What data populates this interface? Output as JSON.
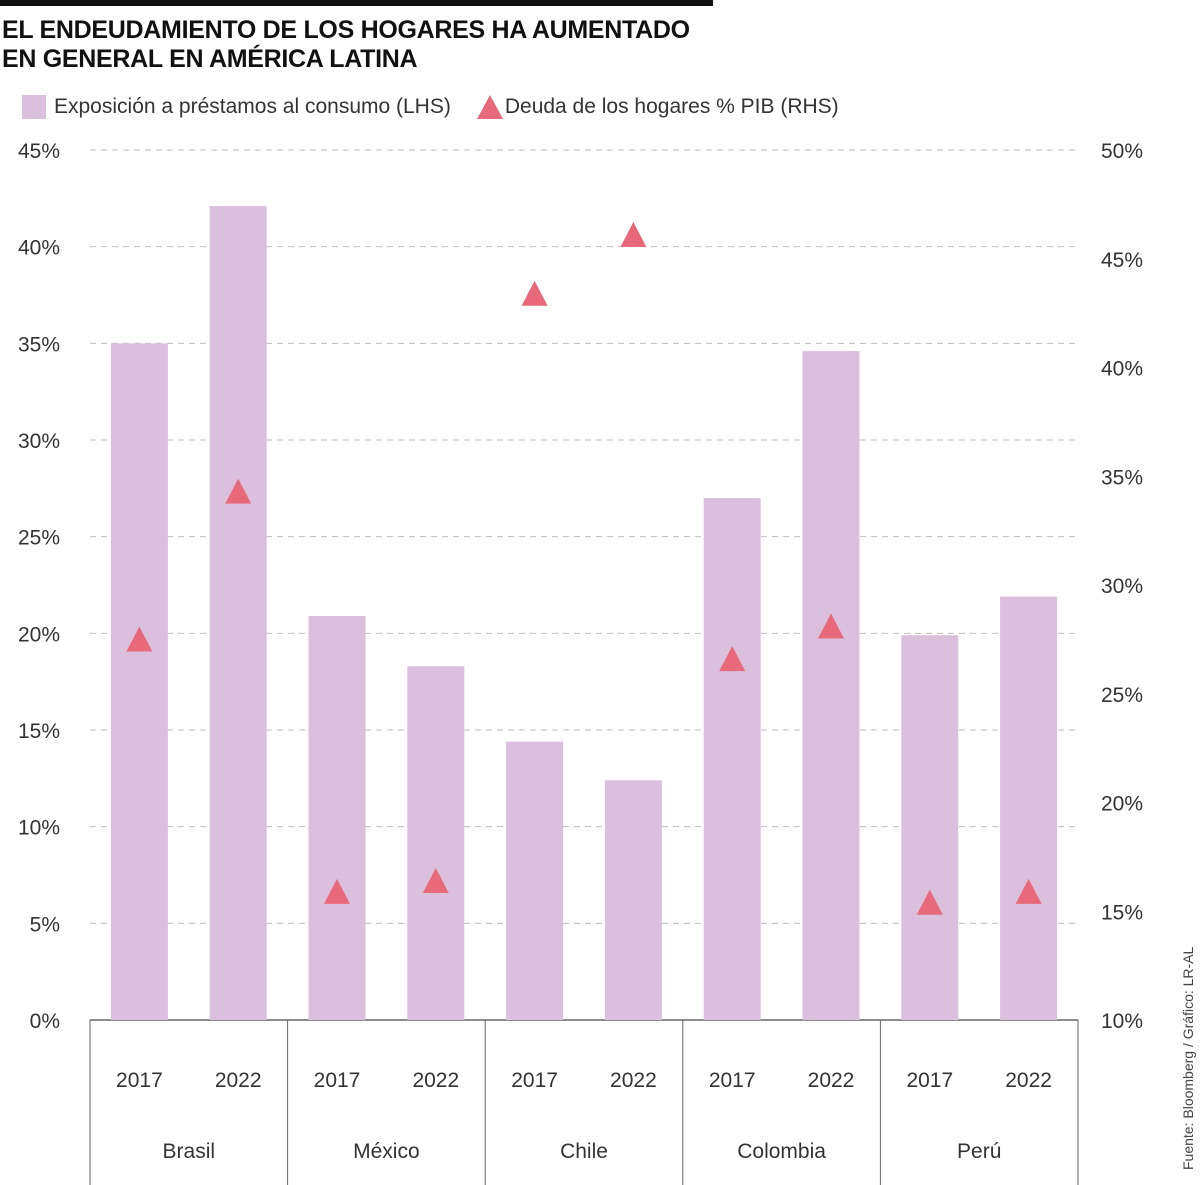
{
  "title_line1": "EL ENDEUDAMIENTO DE LOS HOGARES HA AUMENTADO",
  "title_line2": "EN GENERAL EN AMÉRICA LATINA",
  "source": "Fuente: Bloomberg / Gráfico: LR-AL",
  "colors": {
    "bar": "#dbc0de",
    "marker": "#e8697a",
    "grid": "#bdbdbd",
    "axis": "#666666"
  },
  "chart_data": {
    "type": "bar",
    "title": "EL ENDEUDAMIENTO DE LOS HOGARES HA AUMENTADO EN GENERAL EN AMÉRICA LATINA",
    "groups": [
      "Brasil",
      "México",
      "Chile",
      "Colombia",
      "Perú"
    ],
    "years": [
      "2017",
      "2022"
    ],
    "left_axis": {
      "ylim": [
        0,
        45
      ],
      "ticks": [
        0,
        5,
        10,
        15,
        20,
        25,
        30,
        35,
        40,
        45
      ],
      "tick_labels": [
        "0%",
        "5%",
        "10%",
        "15%",
        "20%",
        "25%",
        "30%",
        "35%",
        "40%",
        "45%"
      ]
    },
    "right_axis": {
      "ylim": [
        10,
        50
      ],
      "ticks": [
        10,
        15,
        20,
        25,
        30,
        35,
        40,
        45,
        50
      ],
      "tick_labels": [
        "10%",
        "15%",
        "20%",
        "25%",
        "30%",
        "35%",
        "40%",
        "45%",
        "50%"
      ]
    },
    "grid": true,
    "legend_position": "top-left",
    "series": [
      {
        "name": "Exposición a préstamos al consumo (LHS)",
        "type": "bar",
        "axis": "left",
        "values": [
          35.0,
          42.1,
          20.9,
          18.3,
          14.4,
          12.4,
          27.0,
          34.6,
          19.9,
          21.9
        ]
      },
      {
        "name": "Deuda de los hogares % PIB (RHS)",
        "type": "scatter",
        "marker": "triangle",
        "axis": "right",
        "values": [
          27.4,
          34.2,
          15.8,
          16.3,
          43.3,
          46.0,
          26.5,
          28.0,
          15.3,
          15.8
        ]
      }
    ]
  }
}
